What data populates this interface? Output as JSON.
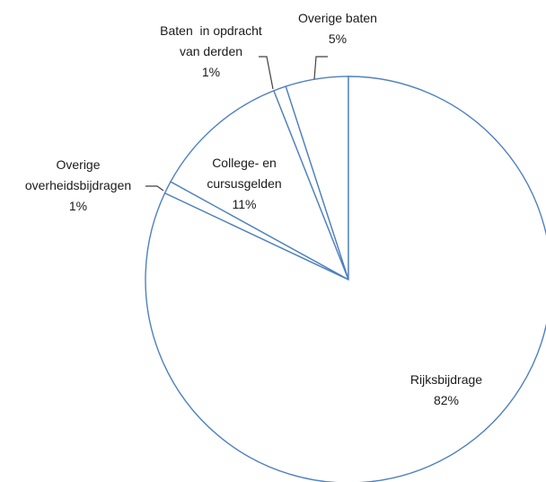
{
  "chart_data": {
    "type": "pie",
    "title": "",
    "slices": [
      {
        "name": "Overige baten",
        "label_lines": [
          "Overige baten",
          "5%"
        ],
        "value": 5
      },
      {
        "name": "Baten in opdracht van derden",
        "label_lines": [
          "Baten  in opdracht",
          "van derden",
          "1%"
        ],
        "value": 1
      },
      {
        "name": "College- en cursusgelden",
        "label_lines": [
          "College- en",
          "cursusgelden",
          "11%"
        ],
        "value": 11
      },
      {
        "name": "Overige overheidsbijdragen",
        "label_lines": [
          "Overige",
          "overheidsbijdragen",
          "1%"
        ],
        "value": 1
      },
      {
        "name": "Rijksbijdrage",
        "label_lines": [
          "Rijksbijdrage",
          "82%"
        ],
        "value": 82
      }
    ],
    "colors": {
      "slice_fill": "#ffffff",
      "slice_stroke": "#4f81bd",
      "leader_line": "#404040",
      "label_text": "#1a1a1a"
    },
    "legend": "none"
  }
}
